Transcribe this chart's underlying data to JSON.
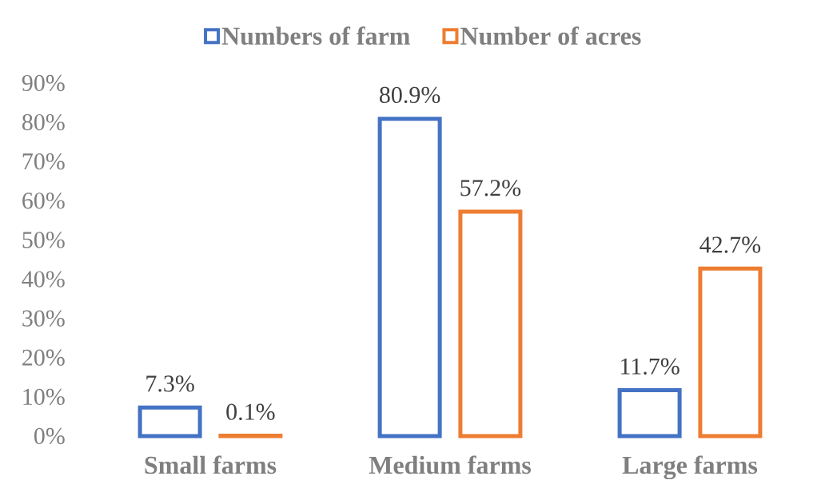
{
  "chart_data": {
    "type": "bar",
    "categories": [
      "Small farms",
      "Medium farms",
      "Large farms"
    ],
    "series": [
      {
        "name": "Numbers of farm",
        "color": "#4472c4",
        "values": [
          7.3,
          80.9,
          11.7
        ],
        "value_labels": [
          "7.3%",
          "80.9%",
          "11.7%"
        ]
      },
      {
        "name": "Number of acres",
        "color": "#ed7d31",
        "values": [
          0.1,
          57.2,
          42.7
        ],
        "value_labels": [
          "0.1%",
          "57.2%",
          "42.7%"
        ]
      }
    ],
    "ylim": [
      0,
      90
    ],
    "yticks": [
      {
        "value": 0,
        "label": "0%"
      },
      {
        "value": 10,
        "label": "10%"
      },
      {
        "value": 20,
        "label": "20%"
      },
      {
        "value": 30,
        "label": "30%"
      },
      {
        "value": 40,
        "label": "40%"
      },
      {
        "value": 50,
        "label": "50%"
      },
      {
        "value": 60,
        "label": "60%"
      },
      {
        "value": 70,
        "label": "70%"
      },
      {
        "value": 80,
        "label": "80%"
      },
      {
        "value": 90,
        "label": "90%"
      }
    ],
    "legend": "top",
    "grid": false
  }
}
